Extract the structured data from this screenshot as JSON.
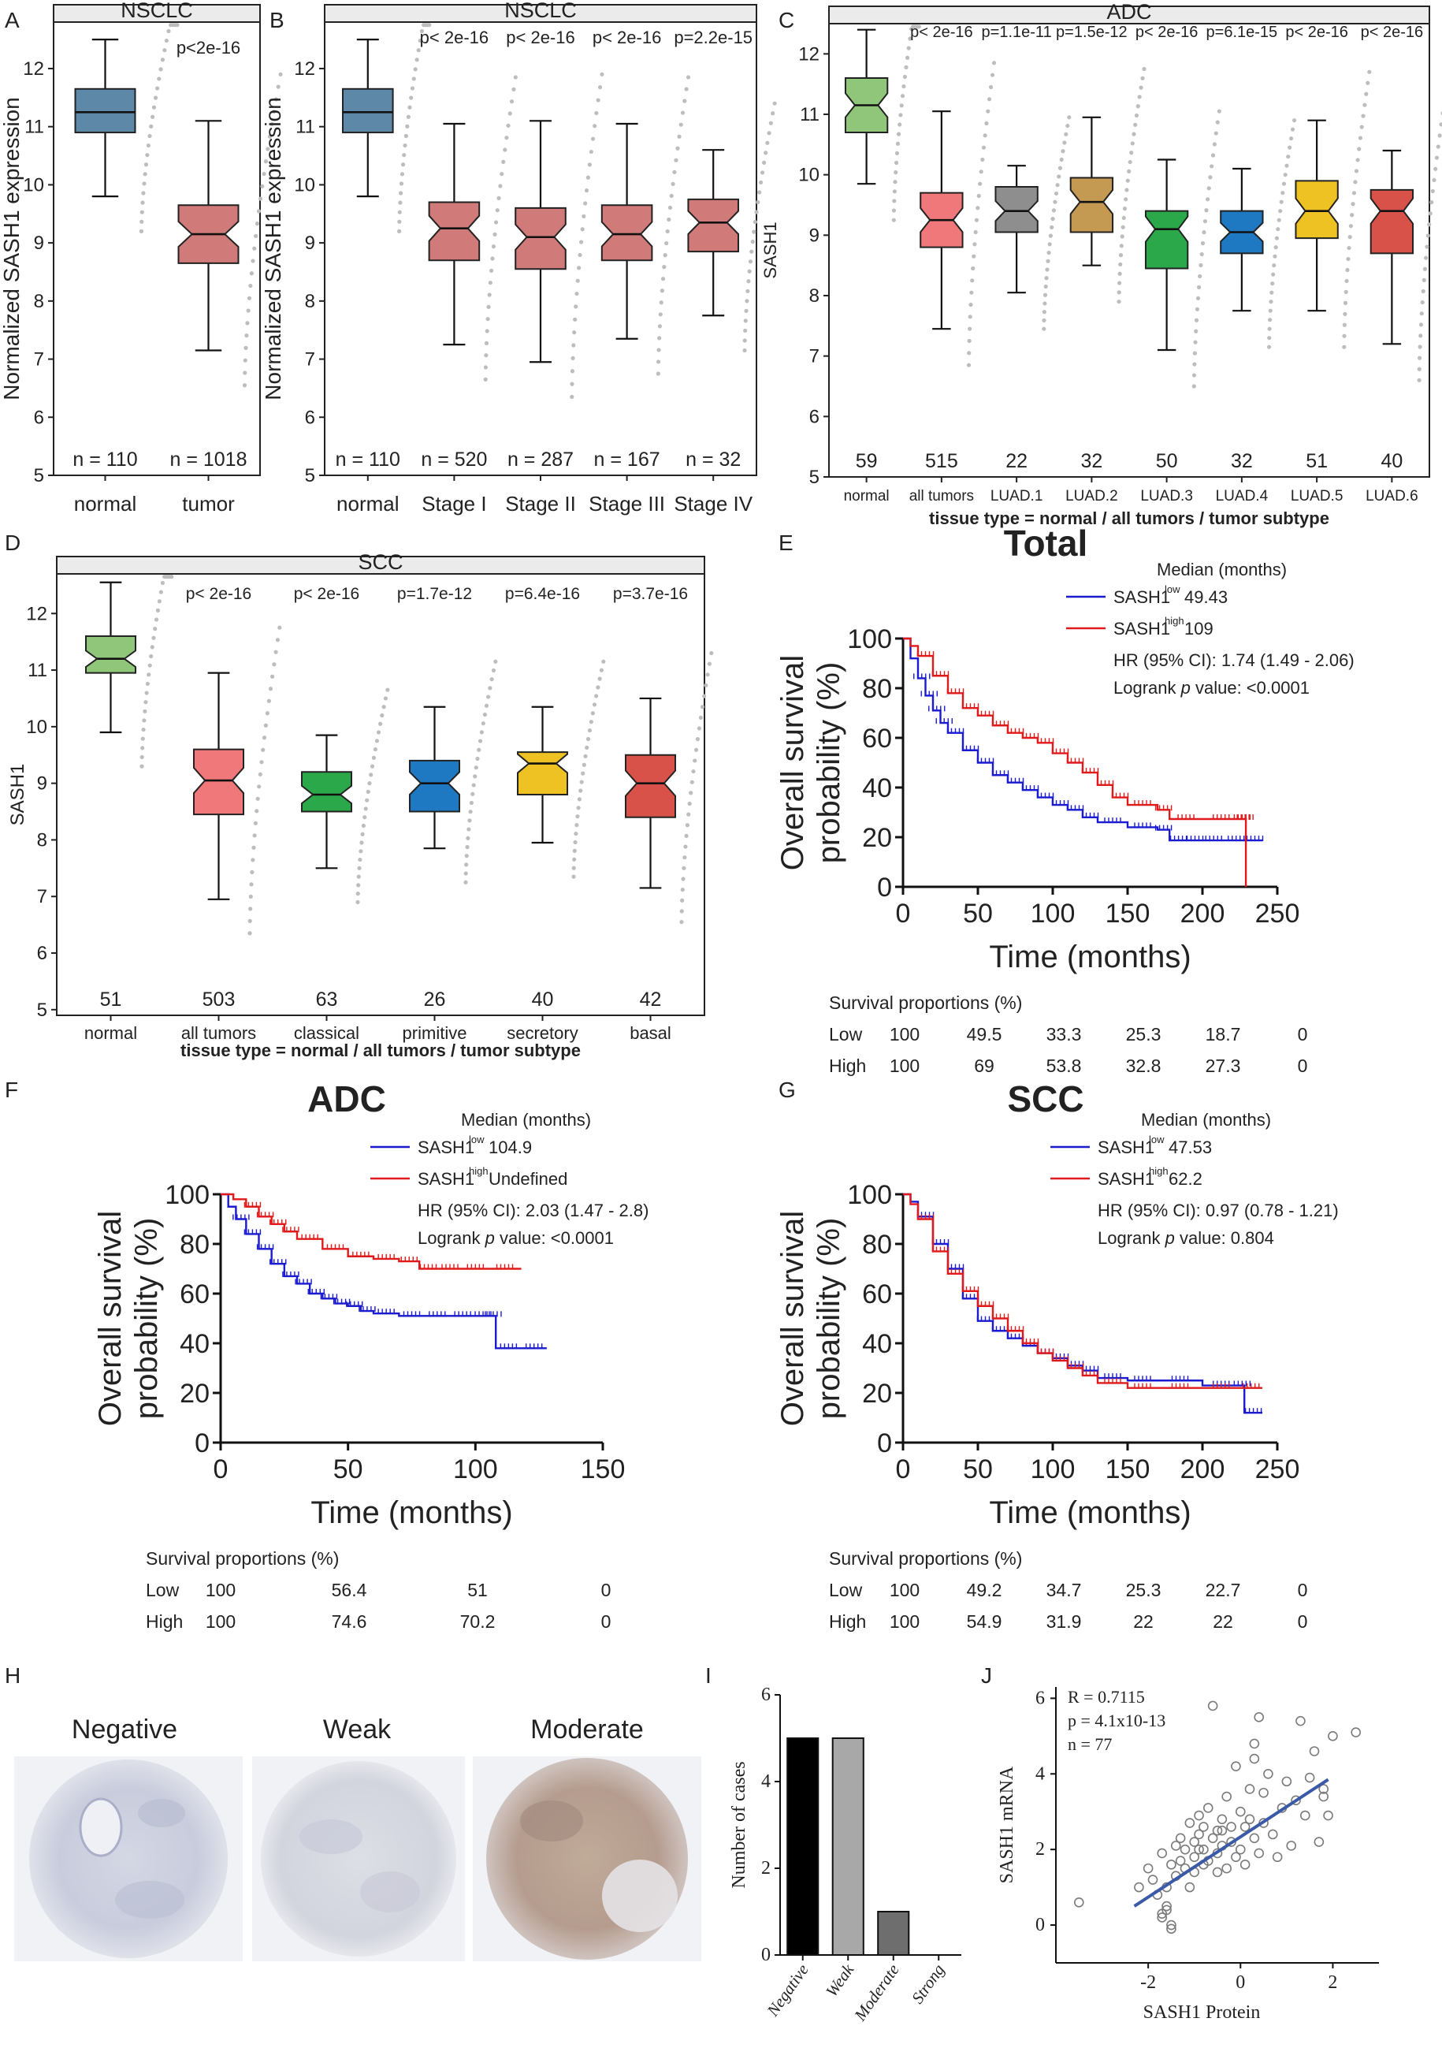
{
  "figure": {
    "panel_letters": [
      "A",
      "B",
      "C",
      "D",
      "E",
      "F",
      "G",
      "H",
      "I",
      "J"
    ]
  },
  "chart_data": [
    {
      "id": "A",
      "type": "box",
      "title": "NSCLC",
      "ylabel": "Normalized SASH1 expression",
      "xlabel": "",
      "ylim": [
        5,
        12.8
      ],
      "yticks": [
        5,
        6,
        7,
        8,
        9,
        10,
        11,
        12
      ],
      "pvalues": [
        "p<2e-16"
      ],
      "groups": [
        {
          "name": "normal",
          "n": "n = 110",
          "q1": 10.9,
          "median": 11.25,
          "q3": 11.65,
          "min": 9.8,
          "max": 12.5,
          "color": "#5e88a8",
          "notch": false
        },
        {
          "name": "tumor",
          "n": "n = 1018",
          "q1": 8.65,
          "median": 9.15,
          "q3": 9.65,
          "min": 7.15,
          "max": 11.1,
          "color": "#d07a7a",
          "notch": true
        }
      ]
    },
    {
      "id": "B",
      "type": "box",
      "title": "NSCLC",
      "ylabel": "Normalized SASH1 expression",
      "xlabel": "",
      "ylim": [
        5,
        12.8
      ],
      "yticks": [
        5,
        6,
        7,
        8,
        9,
        10,
        11,
        12
      ],
      "pvalues": [
        "p< 2e-16",
        "p< 2e-16",
        "p< 2e-16",
        "p=2.2e-15"
      ],
      "groups": [
        {
          "name": "normal",
          "n": "n = 110",
          "q1": 10.9,
          "median": 11.25,
          "q3": 11.65,
          "min": 9.8,
          "max": 12.5,
          "color": "#5e88a8",
          "notch": false
        },
        {
          "name": "Stage I",
          "n": "n = 520",
          "q1": 8.7,
          "median": 9.25,
          "q3": 9.7,
          "min": 7.25,
          "max": 11.05,
          "color": "#d07a7a",
          "notch": true
        },
        {
          "name": "Stage II",
          "n": "n = 287",
          "q1": 8.55,
          "median": 9.1,
          "q3": 9.6,
          "min": 6.95,
          "max": 11.1,
          "color": "#d07a7a",
          "notch": true
        },
        {
          "name": "Stage III",
          "n": "n = 167",
          "q1": 8.7,
          "median": 9.15,
          "q3": 9.65,
          "min": 7.35,
          "max": 11.05,
          "color": "#d07a7a",
          "notch": true
        },
        {
          "name": "Stage IV",
          "n": "n = 32",
          "q1": 8.85,
          "median": 9.35,
          "q3": 9.75,
          "min": 7.75,
          "max": 10.6,
          "color": "#d07a7a",
          "notch": true
        }
      ]
    },
    {
      "id": "C",
      "type": "box",
      "title": "ADC",
      "ylabel": "SASH1",
      "xlabel": "tissue type = normal / all tumors / tumor subtype",
      "ylim": [
        5,
        12.5
      ],
      "yticks": [
        5,
        6,
        7,
        8,
        9,
        10,
        11,
        12
      ],
      "pvalues": [
        "p< 2e-16",
        "p=1.1e-11",
        "p=1.5e-12",
        "p< 2e-16",
        "p=6.1e-15",
        "p< 2e-16",
        "p< 2e-16"
      ],
      "groups": [
        {
          "name": "normal",
          "n": "59",
          "q1": 10.7,
          "median": 11.15,
          "q3": 11.6,
          "min": 9.85,
          "max": 12.4,
          "color": "#8fc67a",
          "notch": true
        },
        {
          "name": "all tumors",
          "n": "515",
          "q1": 8.8,
          "median": 9.25,
          "q3": 9.7,
          "min": 7.45,
          "max": 11.05,
          "color": "#f0787a",
          "notch": true
        },
        {
          "name": "LUAD.1",
          "n": "22",
          "q1": 9.05,
          "median": 9.4,
          "q3": 9.8,
          "min": 8.05,
          "max": 10.15,
          "color": "#8e8e8e",
          "notch": true
        },
        {
          "name": "LUAD.2",
          "n": "32",
          "q1": 9.05,
          "median": 9.55,
          "q3": 9.95,
          "min": 8.5,
          "max": 10.95,
          "color": "#c49a52",
          "notch": true
        },
        {
          "name": "LUAD.3",
          "n": "50",
          "q1": 8.45,
          "median": 9.1,
          "q3": 9.4,
          "min": 7.1,
          "max": 10.25,
          "color": "#2aa84a",
          "notch": true
        },
        {
          "name": "LUAD.4",
          "n": "32",
          "q1": 8.7,
          "median": 9.05,
          "q3": 9.4,
          "min": 7.75,
          "max": 10.1,
          "color": "#1e78c2",
          "notch": true
        },
        {
          "name": "LUAD.5",
          "n": "51",
          "q1": 8.95,
          "median": 9.4,
          "q3": 9.9,
          "min": 7.75,
          "max": 10.9,
          "color": "#efc223",
          "notch": true
        },
        {
          "name": "LUAD.6",
          "n": "40",
          "q1": 8.7,
          "median": 9.4,
          "q3": 9.75,
          "min": 7.2,
          "max": 10.4,
          "color": "#d9524a",
          "notch": true
        }
      ]
    },
    {
      "id": "D",
      "type": "box",
      "title": "SCC",
      "ylabel": "SASH1",
      "xlabel": "tissue type = normal / all tumors / tumor subtype",
      "ylim": [
        4.9,
        12.7
      ],
      "yticks": [
        5,
        6,
        7,
        8,
        9,
        10,
        11,
        12
      ],
      "pvalues": [
        "p< 2e-16",
        "p< 2e-16",
        "p=1.7e-12",
        "p=6.4e-16",
        "p=3.7e-16"
      ],
      "groups": [
        {
          "name": "normal",
          "n": "51",
          "q1": 10.95,
          "median": 11.2,
          "q3": 11.6,
          "min": 9.9,
          "max": 12.55,
          "color": "#8fc67a",
          "notch": true
        },
        {
          "name": "all tumors",
          "n": "503",
          "q1": 8.45,
          "median": 9.05,
          "q3": 9.6,
          "min": 6.95,
          "max": 10.95,
          "color": "#f0787a",
          "notch": true
        },
        {
          "name": "classical",
          "n": "63",
          "q1": 8.5,
          "median": 8.8,
          "q3": 9.2,
          "min": 7.5,
          "max": 9.85,
          "color": "#2aa84a",
          "notch": true
        },
        {
          "name": "primitive",
          "n": "26",
          "q1": 8.5,
          "median": 9.0,
          "q3": 9.4,
          "min": 7.85,
          "max": 10.35,
          "color": "#1e78c2",
          "notch": true
        },
        {
          "name": "secretory",
          "n": "40",
          "q1": 8.8,
          "median": 9.35,
          "q3": 9.55,
          "min": 7.95,
          "max": 10.35,
          "color": "#efc223",
          "notch": true
        },
        {
          "name": "basal",
          "n": "42",
          "q1": 8.4,
          "median": 9.0,
          "q3": 9.5,
          "min": 7.15,
          "max": 10.5,
          "color": "#d9524a",
          "notch": true
        }
      ]
    },
    {
      "id": "E",
      "type": "line",
      "title": "Total",
      "xlabel": "Time (months)",
      "ylabel": "Overall survival probability (%)",
      "xlim": [
        0,
        250
      ],
      "ylim": [
        0,
        100
      ],
      "xticks": [
        0,
        50,
        100,
        150,
        200,
        250
      ],
      "yticks": [
        0,
        20,
        40,
        60,
        80,
        100
      ],
      "legend": {
        "header": "Median (months)",
        "low_label": "SASH1",
        "low_sup": "low",
        "low_median": "49.43",
        "high_label": "SASH1",
        "high_sup": "high",
        "high_median": "109",
        "hr": "HR (95% CI): 1.74 (1.49 - 2.06)",
        "logrank_prefix": "Logrank ",
        "logrank_p": "p",
        "logrank_suffix": " value: <0.0001"
      },
      "series": [
        {
          "name": "SASH1 low",
          "color": "#1a1ad0",
          "x": [
            0,
            5,
            10,
            15,
            20,
            25,
            30,
            40,
            50,
            60,
            70,
            80,
            90,
            100,
            110,
            120,
            130,
            150,
            170,
            178,
            190,
            200,
            215,
            230,
            240
          ],
          "values": [
            100,
            92,
            84,
            77,
            71,
            66,
            62,
            55,
            50,
            45,
            42,
            39,
            36,
            33,
            31,
            28,
            26,
            24,
            23,
            18.7,
            18.7,
            18.7,
            18.7,
            18.7,
            18.7
          ]
        },
        {
          "name": "SASH1 high",
          "color": "#e01a1a",
          "x": [
            0,
            5,
            10,
            20,
            30,
            40,
            50,
            60,
            70,
            80,
            90,
            100,
            110,
            120,
            130,
            140,
            150,
            170,
            178,
            200,
            225,
            228,
            229
          ],
          "values": [
            100,
            97,
            93,
            85,
            78,
            72,
            69,
            65,
            62,
            60,
            58,
            53.8,
            50,
            46,
            41,
            36,
            33,
            31,
            27.3,
            27.3,
            27.3,
            27.3,
            0
          ]
        }
      ],
      "survival": {
        "title": "Survival proportions (%)",
        "rows": [
          {
            "label": "Low",
            "values": [
              "100",
              "49.5",
              "33.3",
              "25.3",
              "18.7",
              "0"
            ]
          },
          {
            "label": "High",
            "values": [
              "100",
              "69",
              "53.8",
              "32.8",
              "27.3",
              "0"
            ]
          }
        ]
      }
    },
    {
      "id": "F",
      "type": "line",
      "title": "ADC",
      "xlabel": "Time (months)",
      "ylabel": "Overall survival probability (%)",
      "xlim": [
        0,
        150
      ],
      "ylim": [
        0,
        100
      ],
      "xticks": [
        0,
        50,
        100,
        150
      ],
      "yticks": [
        0,
        20,
        40,
        60,
        80,
        100
      ],
      "legend": {
        "header": "Median (months)",
        "low_label": "SASH1",
        "low_sup": "low",
        "low_median": "104.9",
        "high_label": "SASH1",
        "high_sup": "high",
        "high_median": "Undefined",
        "hr": "HR (95% CI): 2.03 (1.47 - 2.8)",
        "logrank_prefix": "Logrank ",
        "logrank_p": "p",
        "logrank_suffix": " value: <0.0001"
      },
      "series": [
        {
          "name": "SASH1 low",
          "color": "#1a1ad0",
          "x": [
            0,
            3,
            6,
            10,
            15,
            20,
            25,
            30,
            35,
            40,
            45,
            50,
            55,
            60,
            70,
            80,
            90,
            100,
            106,
            108,
            118,
            128
          ],
          "values": [
            100,
            95,
            90,
            84,
            78,
            72,
            67,
            64,
            60,
            58,
            56,
            55,
            53,
            52,
            51,
            51,
            51,
            51,
            51,
            38,
            38,
            38
          ]
        },
        {
          "name": "SASH1 high",
          "color": "#e01a1a",
          "x": [
            0,
            5,
            10,
            15,
            20,
            25,
            30,
            40,
            50,
            60,
            70,
            78,
            85,
            95,
            105,
            118
          ],
          "values": [
            100,
            98,
            95,
            91,
            88,
            85,
            82,
            78,
            75,
            74,
            73,
            70,
            70,
            70,
            70,
            70
          ]
        }
      ],
      "survival": {
        "title": "Survival proportions (%)",
        "rows": [
          {
            "label": "Low",
            "values": [
              "100",
              "56.4",
              "51",
              "0"
            ]
          },
          {
            "label": "High",
            "values": [
              "100",
              "74.6",
              "70.2",
              "0"
            ]
          }
        ]
      }
    },
    {
      "id": "G",
      "type": "line",
      "title": "SCC",
      "xlabel": "Time (months)",
      "ylabel": "Overall survival probability (%)",
      "xlim": [
        0,
        250
      ],
      "ylim": [
        0,
        100
      ],
      "xticks": [
        0,
        50,
        100,
        150,
        200,
        250
      ],
      "yticks": [
        0,
        20,
        40,
        60,
        80,
        100
      ],
      "legend": {
        "header": "Median (months)",
        "low_label": "SASH1",
        "low_sup": "low",
        "low_median": "47.53",
        "high_label": "SASH1",
        "high_sup": "high",
        "high_median": "62.2",
        "hr": "HR (95% CI): 0.97 (0.78 - 1.21)",
        "logrank_prefix": "Logrank ",
        "logrank_p": "p",
        "logrank_suffix": " value: 0.804"
      },
      "series": [
        {
          "name": "SASH1 low",
          "color": "#1a1ad0",
          "x": [
            0,
            5,
            10,
            20,
            30,
            40,
            50,
            60,
            70,
            80,
            90,
            100,
            110,
            120,
            130,
            150,
            170,
            200,
            225,
            228,
            240
          ],
          "values": [
            100,
            97,
            91,
            80,
            70,
            58,
            49,
            45,
            42,
            39,
            36,
            34,
            31,
            29,
            26,
            25,
            25,
            23,
            23,
            12,
            12
          ]
        },
        {
          "name": "SASH1 high",
          "color": "#e01a1a",
          "x": [
            0,
            5,
            10,
            20,
            30,
            40,
            50,
            60,
            70,
            80,
            90,
            100,
            110,
            120,
            130,
            150,
            170,
            200,
            225,
            240
          ],
          "values": [
            100,
            96,
            90,
            77,
            68,
            61,
            55,
            50,
            45,
            40,
            36,
            33,
            30,
            27,
            24,
            22,
            22,
            22,
            22,
            22
          ]
        }
      ],
      "survival": {
        "title": "Survival proportions (%)",
        "rows": [
          {
            "label": "Low",
            "values": [
              "100",
              "49.2",
              "34.7",
              "25.3",
              "22.7",
              "0"
            ]
          },
          {
            "label": "High",
            "values": [
              "100",
              "54.9",
              "31.9",
              "22",
              "22",
              "0"
            ]
          }
        ]
      }
    },
    {
      "id": "I",
      "type": "bar",
      "title": "",
      "xlabel": "",
      "ylabel": "Number of cases",
      "ylim": [
        0,
        6
      ],
      "yticks": [
        0,
        2,
        4,
        6
      ],
      "categories": [
        "Negative",
        "Weak",
        "Moderate",
        "Strong"
      ],
      "values": [
        5,
        5,
        1,
        0
      ],
      "colors": [
        "#000000",
        "#a8a8a8",
        "#6e6e6e",
        "#ffffff"
      ]
    },
    {
      "id": "J",
      "type": "scatter",
      "title": "",
      "xlabel": "SASH1 Protein",
      "ylabel": "SASH1 mRNA",
      "xlim": [
        -4,
        3
      ],
      "ylim": [
        -1,
        6.3
      ],
      "xticks": [
        -2,
        0,
        2
      ],
      "yticks": [
        0,
        2,
        4,
        6
      ],
      "stats": [
        "R = 0.7115",
        "p = 4.1x10-13",
        "n = 77"
      ],
      "fit": {
        "x": [
          -2.3,
          1.9
        ],
        "y": [
          0.5,
          3.85
        ],
        "color": "#3a5aa8"
      },
      "x": [
        -3.5,
        -2.2,
        -2.0,
        -1.9,
        -1.8,
        -1.7,
        -1.7,
        -1.6,
        -1.6,
        -1.5,
        -1.5,
        -1.4,
        -1.4,
        -1.3,
        -1.3,
        -1.2,
        -1.2,
        -1.1,
        -1.1,
        -1.0,
        -1.0,
        -1.0,
        -0.9,
        -0.9,
        -0.8,
        -0.8,
        -0.8,
        -0.7,
        -0.7,
        -0.6,
        -0.6,
        -0.5,
        -0.5,
        -0.5,
        -0.4,
        -0.4,
        -0.3,
        -0.3,
        -0.2,
        -0.2,
        -0.1,
        -0.1,
        0.0,
        0.0,
        0.1,
        0.1,
        0.2,
        0.2,
        0.3,
        0.3,
        0.4,
        0.4,
        0.5,
        0.5,
        0.6,
        0.7,
        0.8,
        0.9,
        1.0,
        1.1,
        1.2,
        1.3,
        1.4,
        1.5,
        1.6,
        1.7,
        1.8,
        1.9,
        2.0,
        2.5,
        -0.9,
        0.3,
        -1.6,
        -1.7,
        -1.5,
        1.8,
        -0.4
      ],
      "y": [
        0.6,
        1.0,
        1.5,
        1.2,
        0.8,
        1.9,
        0.2,
        0.5,
        1.0,
        1.6,
        0.0,
        2.1,
        1.3,
        1.7,
        2.3,
        1.5,
        2.0,
        2.7,
        1.0,
        1.8,
        2.2,
        1.4,
        2.4,
        2.9,
        1.6,
        2.6,
        2.0,
        3.1,
        1.7,
        2.3,
        5.8,
        1.9,
        2.5,
        1.4,
        2.8,
        2.1,
        3.4,
        1.5,
        2.2,
        2.6,
        1.8,
        4.2,
        3.0,
        2.0,
        2.6,
        1.6,
        2.8,
        3.6,
        2.3,
        4.4,
        1.9,
        5.5,
        2.7,
        3.5,
        4.0,
        2.4,
        1.8,
        3.1,
        3.8,
        2.1,
        3.3,
        5.4,
        2.9,
        3.9,
        4.6,
        2.2,
        3.6,
        2.9,
        5.0,
        5.1,
        2.0,
        4.8,
        0.4,
        0.3,
        -0.1,
        3.4,
        2.5
      ]
    }
  ],
  "panel_h": {
    "labels": [
      "Negative",
      "Weak",
      "Moderate"
    ]
  }
}
